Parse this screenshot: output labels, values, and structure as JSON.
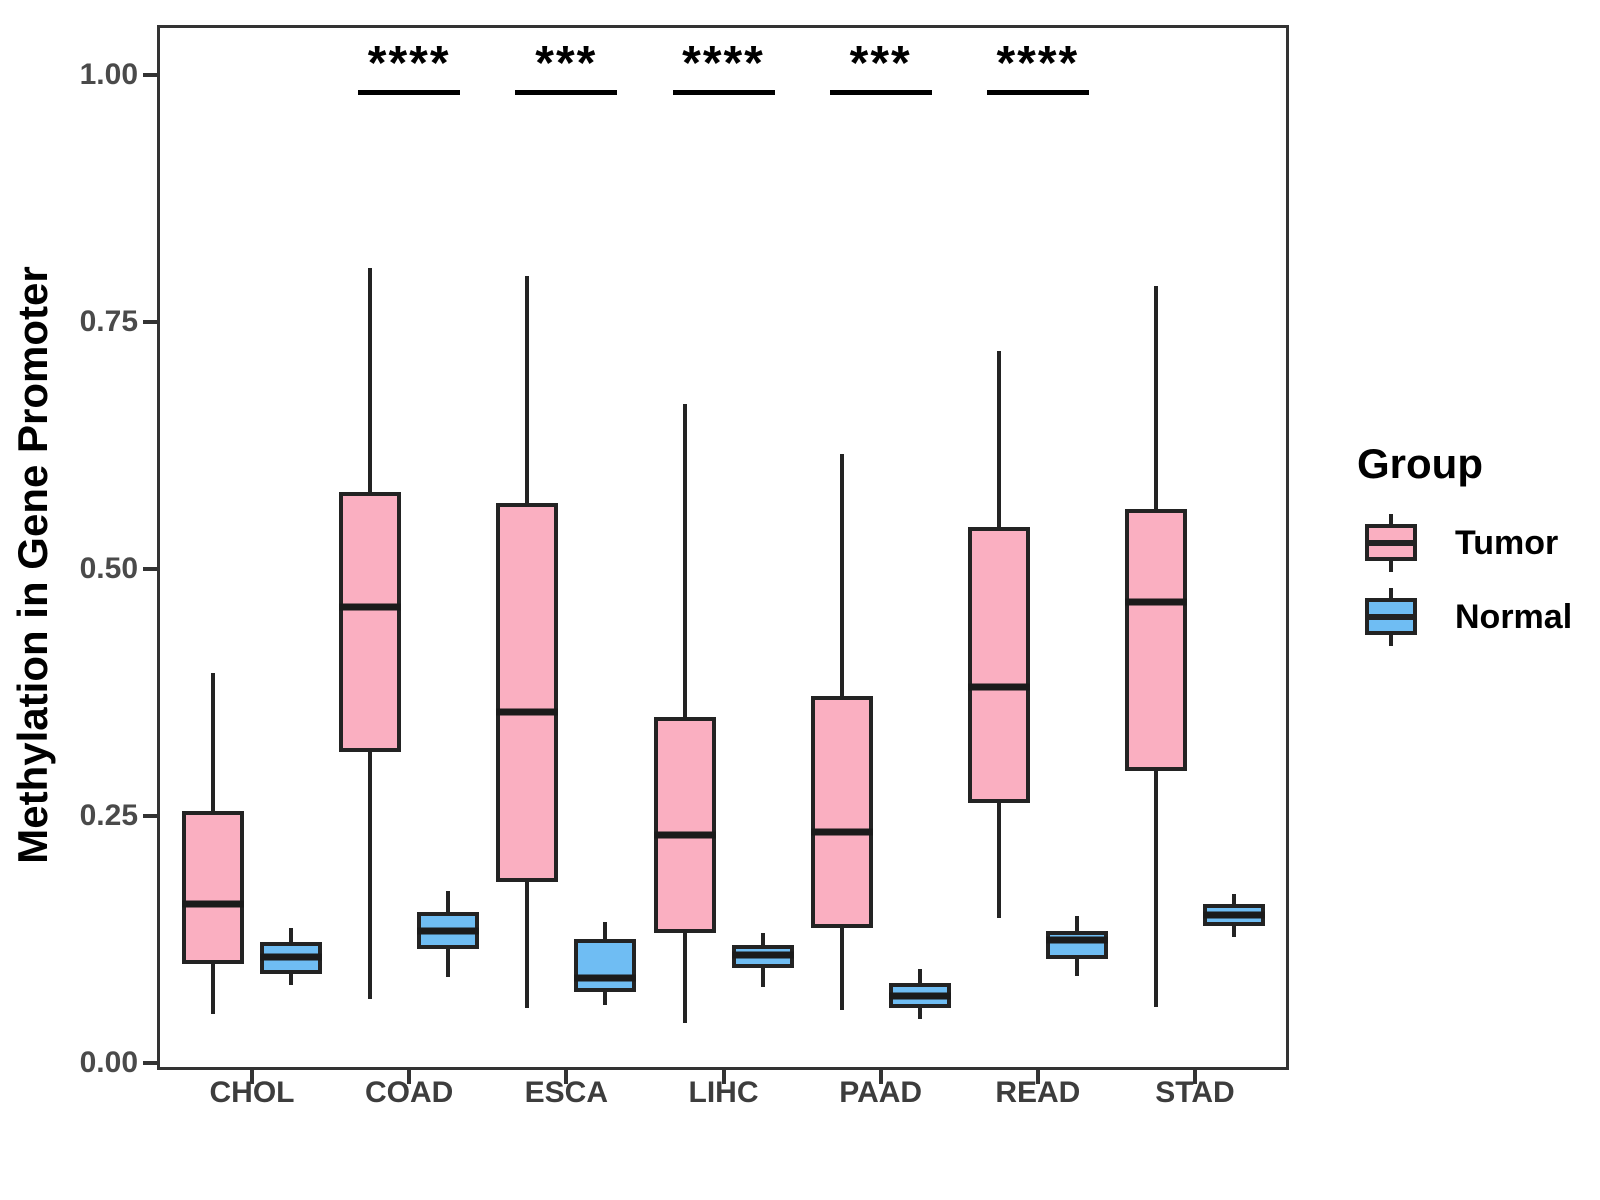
{
  "y_axis": {
    "label": "Methylation in Gene Promoter",
    "ticks": [
      {
        "label": "1.00",
        "value": 1.0
      },
      {
        "label": "0.75",
        "value": 0.75
      },
      {
        "label": "0.50",
        "value": 0.5
      },
      {
        "label": "0.25",
        "value": 0.25
      },
      {
        "label": "0.00",
        "value": 0.0
      }
    ]
  },
  "x_axis": {
    "categories": [
      "CHOL",
      "COAD",
      "ESCA",
      "LIHC",
      "PAAD",
      "READ",
      "STAD"
    ]
  },
  "legend": {
    "title": "Group",
    "items": [
      {
        "label": "Tumor",
        "color": "#FAAFC1"
      },
      {
        "label": "Normal",
        "color": "#6FBDF3"
      }
    ]
  },
  "chart_data": {
    "type": "boxplot",
    "title": "",
    "xlabel": "",
    "ylabel": "Methylation in Gene Promoter",
    "ylim": [
      0,
      1.05
    ],
    "grid": false,
    "legend_position": "right",
    "categories": [
      "CHOL",
      "COAD",
      "ESCA",
      "LIHC",
      "PAAD",
      "READ",
      "STAD"
    ],
    "series": [
      {
        "name": "Tumor",
        "fill": "#FAAFC1",
        "boxes": [
          {
            "min": 0.05,
            "q1": 0.1,
            "median": 0.161,
            "q3": 0.255,
            "max": 0.395
          },
          {
            "min": 0.065,
            "q1": 0.315,
            "median": 0.462,
            "q3": 0.578,
            "max": 0.805
          },
          {
            "min": 0.056,
            "q1": 0.183,
            "median": 0.355,
            "q3": 0.567,
            "max": 0.797
          },
          {
            "min": 0.04,
            "q1": 0.132,
            "median": 0.231,
            "q3": 0.35,
            "max": 0.667
          },
          {
            "min": 0.054,
            "q1": 0.137,
            "median": 0.234,
            "q3": 0.371,
            "max": 0.616
          },
          {
            "min": 0.147,
            "q1": 0.263,
            "median": 0.381,
            "q3": 0.543,
            "max": 0.721
          },
          {
            "min": 0.057,
            "q1": 0.296,
            "median": 0.467,
            "q3": 0.561,
            "max": 0.786
          }
        ]
      },
      {
        "name": "Normal",
        "fill": "#6FBDF3",
        "boxes": [
          {
            "min": 0.079,
            "q1": 0.09,
            "median": 0.107,
            "q3": 0.122,
            "max": 0.137
          },
          {
            "min": 0.087,
            "q1": 0.115,
            "median": 0.134,
            "q3": 0.153,
            "max": 0.174
          },
          {
            "min": 0.059,
            "q1": 0.072,
            "median": 0.086,
            "q3": 0.126,
            "max": 0.143
          },
          {
            "min": 0.077,
            "q1": 0.096,
            "median": 0.109,
            "q3": 0.119,
            "max": 0.132
          },
          {
            "min": 0.045,
            "q1": 0.056,
            "median": 0.068,
            "q3": 0.081,
            "max": 0.095
          },
          {
            "min": 0.088,
            "q1": 0.105,
            "median": 0.124,
            "q3": 0.134,
            "max": 0.149
          },
          {
            "min": 0.128,
            "q1": 0.139,
            "median": 0.15,
            "q3": 0.161,
            "max": 0.171
          }
        ]
      }
    ],
    "significance": [
      {
        "category": "COAD",
        "stars": "****"
      },
      {
        "category": "ESCA",
        "stars": "***"
      },
      {
        "category": "LIHC",
        "stars": "****"
      },
      {
        "category": "PAAD",
        "stars": "***"
      },
      {
        "category": "READ",
        "stars": "****"
      }
    ]
  }
}
